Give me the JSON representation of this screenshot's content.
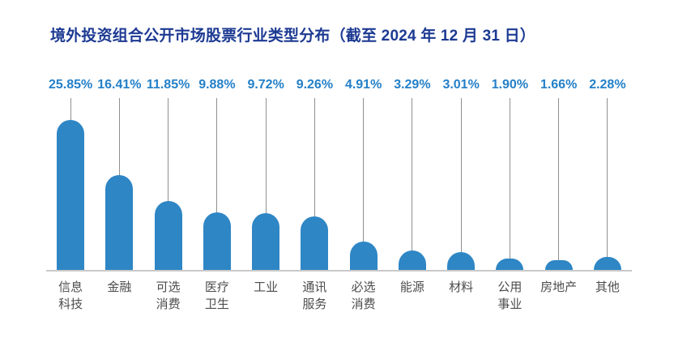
{
  "title": {
    "text": "境外投资组合公开市场股票行业类型分布（截至 2024 年 12 月 31 日）"
  },
  "chart_data": {
    "type": "bar",
    "title": "境外投资组合公开市场股票行业类型分布（截至 2024 年 12 月 31 日）",
    "unit": "%",
    "categories": [
      "信息科技",
      "金融",
      "可选消费",
      "医疗卫生",
      "工业",
      "通讯服务",
      "必选消费",
      "能源",
      "材料",
      "公用事业",
      "房地产",
      "其他"
    ],
    "category_display": [
      "信息\n科技",
      "金融",
      "可选\n消费",
      "医疗\n卫生",
      "工业",
      "通讯\n服务",
      "必选\n消费",
      "能源",
      "材料",
      "公用\n事业",
      "房地产",
      "其他"
    ],
    "values": [
      25.85,
      16.41,
      11.85,
      9.88,
      9.72,
      9.26,
      4.91,
      3.29,
      3.01,
      1.9,
      1.66,
      2.28
    ],
    "value_labels": [
      "25.85%",
      "16.41%",
      "11.85%",
      "9.88%",
      "9.72%",
      "9.26%",
      "4.91%",
      "3.29%",
      "3.01%",
      "1.90%",
      "1.66%",
      "2.28%"
    ],
    "xlabel": "",
    "ylabel": "",
    "ylim": [
      0,
      26
    ],
    "legend": "none",
    "grid": false,
    "bar_style": "rounded-top-lollipop-with-stem-line",
    "colors": {
      "bar": "#2e86c5",
      "value_label": "#2480c8",
      "title": "#1d3a93",
      "stem_line": "#8f8f8f",
      "baseline": "#c9c9c9",
      "category_label": "#4d4d4d"
    }
  }
}
